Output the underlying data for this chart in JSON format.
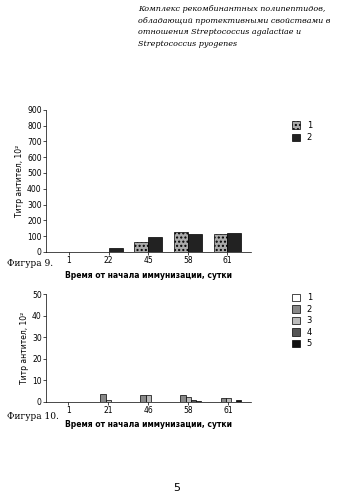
{
  "title_line1": "Комплекс рекомбинантных полипептидов,",
  "title_line2": "обладающий протективными свойствами в",
  "title_line3": "отношения Streptococcus agalactiae и",
  "title_line4": "Streptococcus pyogenes",
  "fig9_xlabel": "Время от начала иммунизации, сутки",
  "fig9_ylabel": "Титр антител, 10²",
  "fig9_xticks": [
    1,
    22,
    45,
    58,
    61
  ],
  "fig9_ylim": [
    0,
    900
  ],
  "fig9_yticks": [
    0,
    100,
    200,
    300,
    400,
    500,
    600,
    700,
    800,
    900
  ],
  "fig9_series1": [
    0,
    2,
    65,
    125,
    115
  ],
  "fig9_series2": [
    0,
    28,
    95,
    115,
    120
  ],
  "fig9_colors": [
    "#aaaaaa",
    "#222222"
  ],
  "fig9_legend": [
    "1",
    "2"
  ],
  "fig9_caption": "Фигура 9.",
  "fig10_xlabel": "Время от начала иммунизации, сутки",
  "fig10_ylabel": "Титр антител, 10²",
  "fig10_xticks": [
    1,
    21,
    46,
    58,
    61
  ],
  "fig10_ylim": [
    0,
    50
  ],
  "fig10_yticks": [
    0,
    10,
    20,
    30,
    40,
    50
  ],
  "fig10_series1": [
    0,
    0,
    0,
    0,
    0
  ],
  "fig10_series2": [
    0,
    3.5,
    3.0,
    3.0,
    1.5
  ],
  "fig10_series3": [
    0,
    1.0,
    3.0,
    2.0,
    1.5
  ],
  "fig10_series4": [
    0,
    0,
    0,
    1.0,
    0
  ],
  "fig10_series5": [
    0,
    0,
    0,
    0.5,
    0.8
  ],
  "fig10_colors": [
    "#ffffff",
    "#888888",
    "#bbbbbb",
    "#555555",
    "#111111"
  ],
  "fig10_hatches": [
    "",
    "",
    "",
    "",
    ""
  ],
  "fig10_legend": [
    "1",
    "2",
    "3",
    "4",
    "5"
  ],
  "fig10_caption": "Фигура 10.",
  "page_number": "5",
  "bg_color": "#ffffff"
}
